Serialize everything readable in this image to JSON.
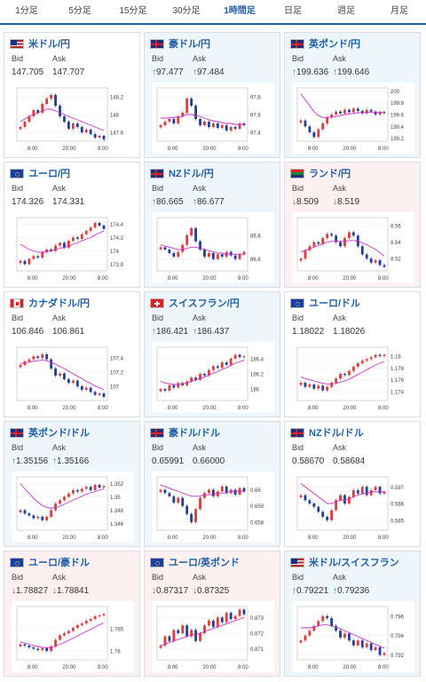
{
  "tabs": [
    {
      "label": "1分足",
      "active": false
    },
    {
      "label": "5分足",
      "active": false
    },
    {
      "label": "15分足",
      "active": false
    },
    {
      "label": "30分足",
      "active": false
    },
    {
      "label": "1時間足",
      "active": true
    },
    {
      "label": "日足",
      "active": false
    },
    {
      "label": "週足",
      "active": false
    },
    {
      "label": "月足",
      "active": false
    }
  ],
  "labels": {
    "bid": "Bid",
    "ask": "Ask"
  },
  "colors": {
    "up": "#1a9a58",
    "down": "#d93030",
    "candle_up": "#e23a3a",
    "candle_down": "#1d3f9a",
    "ma": "#c832c8",
    "ma2": "#3aa0e0"
  },
  "cards": [
    {
      "pair": "米ドル/円",
      "flag": "us",
      "trend": "neutral",
      "bid": "147.705",
      "ask": "147.707",
      "bid_dir": "",
      "ask_dir": "",
      "yticks": [
        "148.2",
        "148",
        "147.8"
      ],
      "ylim": [
        147.7,
        148.3
      ],
      "xticks": [
        "8:00",
        "20:00",
        "8:00"
      ],
      "closes": [
        147.86,
        147.92,
        147.98,
        148.05,
        148.02,
        148.12,
        148.18,
        148.22,
        148.1,
        147.98,
        147.92,
        147.84,
        147.9,
        147.86,
        147.8,
        147.83,
        147.78,
        147.74,
        147.76,
        147.72
      ],
      "ma": [
        147.92,
        147.95,
        147.98,
        148.0,
        148.02,
        148.04,
        148.06,
        148.06,
        148.04,
        148.02,
        148.0,
        147.98,
        147.96,
        147.94,
        147.92,
        147.9,
        147.88,
        147.86,
        147.84,
        147.82
      ]
    },
    {
      "pair": "豪ドル/円",
      "flag": "au",
      "trend": "up",
      "bid": "97.477",
      "ask": "97.484",
      "bid_dir": "up",
      "ask_dir": "up",
      "yticks": [
        "97.8",
        "97.6",
        "97.4"
      ],
      "ylim": [
        97.3,
        97.9
      ],
      "xticks": [
        "8:00",
        "20:00",
        "8:00"
      ],
      "closes": [
        97.48,
        97.52,
        97.55,
        97.5,
        97.58,
        97.62,
        97.78,
        97.7,
        97.55,
        97.48,
        97.52,
        97.46,
        97.5,
        97.45,
        97.48,
        97.42,
        97.46,
        97.44,
        97.5,
        97.48
      ],
      "ma": [
        97.56,
        97.56,
        97.56,
        97.57,
        97.57,
        97.58,
        97.6,
        97.6,
        97.59,
        97.58,
        97.56,
        97.54,
        97.53,
        97.52,
        97.51,
        97.5,
        97.5,
        97.49,
        97.49,
        97.49
      ]
    },
    {
      "pair": "英ポンド/円",
      "flag": "gb",
      "trend": "up",
      "bid": "199.636",
      "ask": "199.646",
      "bid_dir": "up",
      "ask_dir": "up",
      "yticks": [
        "200",
        "199.8",
        "199.6",
        "199.4",
        "199.2"
      ],
      "ylim": [
        199.15,
        200.05
      ],
      "xticks": [
        "8:00",
        "20:00",
        "8:00"
      ],
      "closes": [
        199.5,
        199.4,
        199.3,
        199.22,
        199.35,
        199.45,
        199.55,
        199.6,
        199.65,
        199.62,
        199.68,
        199.64,
        199.7,
        199.66,
        199.62,
        199.68,
        199.65,
        199.6,
        199.64,
        199.63
      ],
      "ma": [
        199.95,
        199.85,
        199.75,
        199.65,
        199.58,
        199.55,
        199.55,
        199.56,
        199.57,
        199.58,
        199.6,
        199.61,
        199.62,
        199.63,
        199.63,
        199.64,
        199.64,
        199.64,
        199.64,
        199.64
      ]
    },
    {
      "pair": "ユーロ/円",
      "flag": "eu",
      "trend": "neutral",
      "bid": "174.326",
      "ask": "174.331",
      "bid_dir": "",
      "ask_dir": "",
      "yticks": [
        "174.4",
        "174.2",
        "174",
        "173.8"
      ],
      "ylim": [
        173.7,
        174.5
      ],
      "xticks": [
        "8:00",
        "20:00",
        "8:00"
      ],
      "closes": [
        173.85,
        173.8,
        173.88,
        173.92,
        173.9,
        173.98,
        174.02,
        174.0,
        174.08,
        174.12,
        174.05,
        174.15,
        174.2,
        174.18,
        174.25,
        174.3,
        174.35,
        174.42,
        174.38,
        174.33
      ],
      "ma": [
        174.1,
        174.06,
        174.02,
        174.0,
        173.98,
        173.98,
        173.99,
        174.0,
        174.02,
        174.04,
        174.05,
        174.07,
        174.1,
        174.12,
        174.15,
        174.18,
        174.2,
        174.24,
        174.27,
        174.3
      ]
    },
    {
      "pair": "NZドル/円",
      "flag": "nz",
      "trend": "up",
      "bid": "86.665",
      "ask": "86.677",
      "bid_dir": "up",
      "ask_dir": "up",
      "yticks": [
        "86.8",
        "86.6"
      ],
      "ylim": [
        86.5,
        86.95
      ],
      "xticks": [
        "8:00",
        "20:00",
        "8:00"
      ],
      "closes": [
        86.7,
        86.68,
        86.65,
        86.62,
        86.66,
        86.72,
        86.8,
        86.86,
        86.75,
        86.68,
        86.62,
        86.65,
        86.6,
        86.64,
        86.62,
        86.66,
        86.63,
        86.6,
        86.64,
        86.66
      ],
      "ma": [
        86.72,
        86.71,
        86.7,
        86.69,
        86.68,
        86.68,
        86.69,
        86.7,
        86.7,
        86.69,
        86.68,
        86.67,
        86.66,
        86.65,
        86.65,
        86.64,
        86.64,
        86.64,
        86.64,
        86.64
      ]
    },
    {
      "pair": "ランド/円",
      "flag": "za",
      "trend": "down",
      "bid": "8.509",
      "ask": "8.519",
      "bid_dir": "down",
      "ask_dir": "down",
      "yticks": [
        "8.56",
        "8.54",
        "8.52"
      ],
      "ylim": [
        8.505,
        8.57
      ],
      "xticks": [
        "8:00",
        "20:00",
        "8:00"
      ],
      "closes": [
        8.52,
        8.53,
        8.535,
        8.54,
        8.538,
        8.545,
        8.55,
        8.548,
        8.54,
        8.535,
        8.545,
        8.552,
        8.548,
        8.535,
        8.525,
        8.52,
        8.515,
        8.518,
        8.512,
        8.51
      ],
      "ma": [
        8.528,
        8.53,
        8.532,
        8.534,
        8.536,
        8.538,
        8.54,
        8.541,
        8.541,
        8.541,
        8.541,
        8.542,
        8.542,
        8.541,
        8.539,
        8.537,
        8.534,
        8.531,
        8.527,
        8.523
      ]
    },
    {
      "pair": "カナダドル/円",
      "flag": "ca",
      "trend": "neutral",
      "bid": "106.846",
      "ask": "106.861",
      "bid_dir": "",
      "ask_dir": "",
      "yticks": [
        "107.4",
        "107.2",
        "107"
      ],
      "ylim": [
        106.8,
        107.55
      ],
      "xticks": [
        "8:00",
        "20:00",
        "8:00"
      ],
      "closes": [
        107.3,
        107.35,
        107.38,
        107.42,
        107.4,
        107.45,
        107.38,
        107.25,
        107.15,
        107.18,
        107.1,
        107.05,
        107.08,
        107.0,
        106.95,
        106.98,
        106.92,
        106.88,
        106.9,
        106.85
      ],
      "ma": [
        107.32,
        107.33,
        107.34,
        107.35,
        107.36,
        107.37,
        107.36,
        107.34,
        107.31,
        107.28,
        107.25,
        107.21,
        107.18,
        107.14,
        107.11,
        107.07,
        107.04,
        107.0,
        106.98,
        106.95
      ]
    },
    {
      "pair": "スイスフラン/円",
      "flag": "ch",
      "trend": "up",
      "bid": "186.421",
      "ask": "186.437",
      "bid_dir": "up",
      "ask_dir": "up",
      "yticks": [
        "186.4",
        "186.2",
        "186"
      ],
      "ylim": [
        185.85,
        186.55
      ],
      "xticks": [
        "8:00",
        "20:00",
        "8:00"
      ],
      "closes": [
        186.0,
        185.98,
        186.05,
        186.02,
        186.08,
        186.05,
        186.1,
        186.15,
        186.12,
        186.2,
        186.18,
        186.25,
        186.3,
        186.28,
        186.35,
        186.32,
        186.4,
        186.45,
        186.42,
        186.43
      ],
      "ma": [
        186.1,
        186.08,
        186.07,
        186.06,
        186.06,
        186.07,
        186.08,
        186.1,
        186.12,
        186.14,
        186.16,
        186.18,
        186.21,
        186.23,
        186.26,
        186.28,
        186.31,
        186.34,
        186.36,
        186.38
      ]
    },
    {
      "pair": "ユーロ/ドル",
      "flag": "eu",
      "trend": "neutral",
      "bid": "1.18022",
      "ask": "1.18026",
      "bid_dir": "",
      "ask_dir": "",
      "yticks": [
        "1.18",
        "1.178",
        "1.176",
        "1.174"
      ],
      "ylim": [
        1.1725,
        1.1815
      ],
      "xticks": [
        "8:00",
        "20:00",
        "8:00"
      ],
      "closes": [
        1.1755,
        1.1748,
        1.1752,
        1.1745,
        1.175,
        1.1742,
        1.1748,
        1.1755,
        1.1762,
        1.177,
        1.1768,
        1.1775,
        1.1782,
        1.1788,
        1.1792,
        1.1795,
        1.1798,
        1.1802,
        1.18,
        1.1802
      ],
      "ma": [
        1.1765,
        1.1762,
        1.176,
        1.1758,
        1.1756,
        1.1754,
        1.1753,
        1.1753,
        1.1754,
        1.1756,
        1.1758,
        1.1761,
        1.1765,
        1.1769,
        1.1773,
        1.1777,
        1.1781,
        1.1785,
        1.1788,
        1.1791
      ]
    },
    {
      "pair": "英ポンド/ドル",
      "flag": "gb",
      "trend": "up",
      "bid": "1.35156",
      "ask": "1.35166",
      "bid_dir": "up",
      "ask_dir": "up",
      "yticks": [
        "1.352",
        "1.35",
        "1.348",
        "1.346"
      ],
      "ylim": [
        1.345,
        1.353
      ],
      "xticks": [
        "8:00",
        "20:00",
        "8:00"
      ],
      "closes": [
        1.348,
        1.3475,
        1.3472,
        1.3468,
        1.347,
        1.3465,
        1.347,
        1.348,
        1.349,
        1.3495,
        1.35,
        1.3505,
        1.351,
        1.3508,
        1.3512,
        1.3515,
        1.351,
        1.3518,
        1.3514,
        1.3516
      ],
      "ma": [
        1.352,
        1.3512,
        1.3505,
        1.3498,
        1.3492,
        1.3487,
        1.3484,
        1.3483,
        1.3484,
        1.3486,
        1.3489,
        1.3492,
        1.3495,
        1.3498,
        1.3501,
        1.3504,
        1.3506,
        1.3508,
        1.351,
        1.3512
      ]
    },
    {
      "pair": "豪ドル/ドル",
      "flag": "au",
      "trend": "up",
      "bid": "0.65991",
      "ask": "0.66000",
      "bid_dir": "",
      "ask_dir": "",
      "yticks": [
        "0.66",
        "0.659",
        "0.658"
      ],
      "ylim": [
        0.6575,
        0.6608
      ],
      "xticks": [
        "8:00",
        "20:00",
        "8:00"
      ],
      "closes": [
        0.66,
        0.6598,
        0.6596,
        0.6592,
        0.6595,
        0.659,
        0.6585,
        0.658,
        0.6588,
        0.6595,
        0.6598,
        0.66,
        0.6596,
        0.6599,
        0.6602,
        0.6598,
        0.66,
        0.6597,
        0.6601,
        0.6599
      ],
      "ma": [
        0.6603,
        0.6602,
        0.6601,
        0.66,
        0.6599,
        0.6598,
        0.6597,
        0.6596,
        0.6596,
        0.6596,
        0.6597,
        0.6597,
        0.6597,
        0.6598,
        0.6598,
        0.6598,
        0.6599,
        0.6599,
        0.6599,
        0.6599
      ]
    },
    {
      "pair": "NZドル/ドル",
      "flag": "nz",
      "trend": "neutral",
      "bid": "0.58670",
      "ask": "0.58684",
      "bid_dir": "",
      "ask_dir": "",
      "yticks": [
        "0.587",
        "0.586",
        "0.585"
      ],
      "ylim": [
        0.5844,
        0.5876
      ],
      "xticks": [
        "8:00",
        "20:00",
        "8:00"
      ],
      "closes": [
        0.5865,
        0.5862,
        0.586,
        0.5858,
        0.5855,
        0.5852,
        0.585,
        0.5856,
        0.5862,
        0.5865,
        0.586,
        0.5864,
        0.5868,
        0.5866,
        0.587,
        0.5865,
        0.5868,
        0.587,
        0.5866,
        0.5867
      ],
      "ma": [
        0.5872,
        0.587,
        0.5868,
        0.5866,
        0.5864,
        0.5862,
        0.586,
        0.586,
        0.5861,
        0.5862,
        0.5862,
        0.5863,
        0.5864,
        0.5865,
        0.5866,
        0.5866,
        0.5867,
        0.5867,
        0.5867,
        0.5867
      ]
    },
    {
      "pair": "ユーロ/豪ドル",
      "flag": "eu",
      "trend": "down",
      "bid": "1.78827",
      "ask": "1.78841",
      "bid_dir": "down",
      "ask_dir": "down",
      "yticks": [
        "1.785",
        "1.78"
      ],
      "ylim": [
        1.778,
        1.79
      ],
      "xticks": [
        "8:00",
        "20:00",
        "8:00"
      ],
      "closes": [
        1.7815,
        1.7812,
        1.7808,
        1.7805,
        1.7802,
        1.7806,
        1.78,
        1.781,
        1.7825,
        1.7835,
        1.784,
        1.7845,
        1.7852,
        1.7858,
        1.7862,
        1.7868,
        1.7872,
        1.7878,
        1.788,
        1.7883
      ],
      "ma": [
        1.782,
        1.7818,
        1.7815,
        1.7812,
        1.781,
        1.7808,
        1.7807,
        1.7808,
        1.7811,
        1.7815,
        1.7819,
        1.7824,
        1.7829,
        1.7834,
        1.7839,
        1.7844,
        1.7849,
        1.7854,
        1.7859,
        1.7863
      ]
    },
    {
      "pair": "ユーロ/英ポンド",
      "flag": "eu",
      "trend": "down",
      "bid": "0.87317",
      "ask": "0.87325",
      "bid_dir": "down",
      "ask_dir": "down",
      "yticks": [
        "0.873",
        "0.872",
        "0.871"
      ],
      "ylim": [
        0.8703,
        0.8737
      ],
      "xticks": [
        "8:00",
        "20:00",
        "8:00"
      ],
      "closes": [
        0.8712,
        0.8718,
        0.8715,
        0.8722,
        0.872,
        0.8725,
        0.8718,
        0.8722,
        0.8715,
        0.872,
        0.8725,
        0.8728,
        0.8724,
        0.873,
        0.8727,
        0.8733,
        0.8729,
        0.8731,
        0.8735,
        0.8732
      ],
      "ma": [
        0.8712,
        0.8713,
        0.8714,
        0.8715,
        0.8716,
        0.8717,
        0.8718,
        0.8719,
        0.8719,
        0.872,
        0.8721,
        0.8722,
        0.8723,
        0.8724,
        0.8725,
        0.8726,
        0.8727,
        0.8728,
        0.8729,
        0.873
      ]
    },
    {
      "pair": "米ドル/スイスフラン",
      "flag": "us",
      "trend": "up",
      "bid": "0.79221",
      "ask": "0.79236",
      "bid_dir": "up",
      "ask_dir": "up",
      "yticks": [
        "0.796",
        "0.794",
        "0.792"
      ],
      "ylim": [
        0.7915,
        0.797
      ],
      "xticks": [
        "8:00",
        "20:00",
        "8:00"
      ],
      "closes": [
        0.7935,
        0.794,
        0.7945,
        0.795,
        0.7955,
        0.796,
        0.7958,
        0.795,
        0.7945,
        0.7938,
        0.7942,
        0.7935,
        0.793,
        0.7935,
        0.7928,
        0.7932,
        0.7925,
        0.7928,
        0.792,
        0.7922
      ],
      "ma": [
        0.7948,
        0.7948,
        0.7948,
        0.7949,
        0.795,
        0.7951,
        0.7951,
        0.795,
        0.7949,
        0.7947,
        0.7945,
        0.7943,
        0.7941,
        0.7939,
        0.7937,
        0.7935,
        0.7933,
        0.7931,
        0.7929,
        0.7927
      ]
    }
  ]
}
